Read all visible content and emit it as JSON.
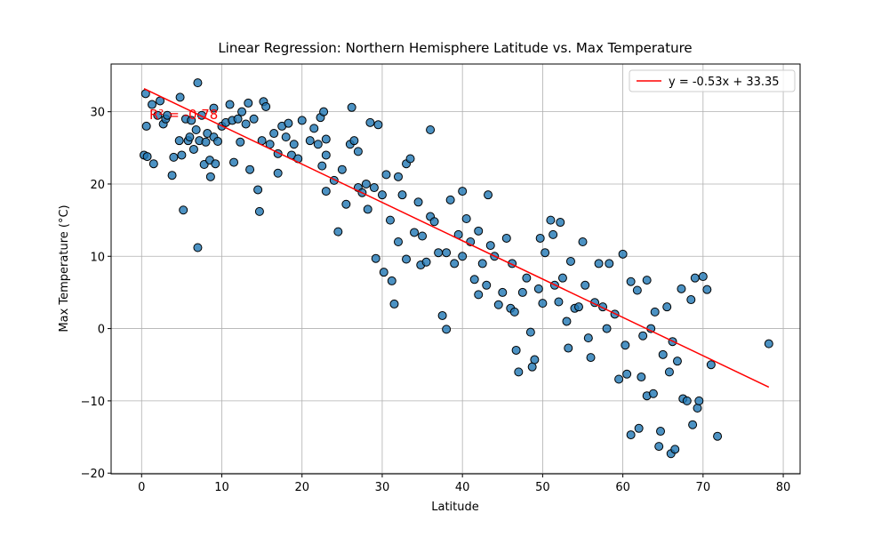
{
  "chart_data": {
    "type": "scatter",
    "title": "Linear Regression: Northern Hemisphere Latitude vs. Max Temperature",
    "xlabel": "Latitude",
    "ylabel": "Max Temperature (°C)",
    "xlim": [
      -3.8,
      82.1
    ],
    "ylim": [
      -20.1,
      36.6
    ],
    "xticks": [
      0,
      10,
      20,
      30,
      40,
      50,
      60,
      70,
      80
    ],
    "yticks": [
      {
        "value": -20,
        "label": "−20"
      },
      {
        "value": -10,
        "label": "−10"
      },
      0,
      10,
      20,
      30
    ],
    "grid": true,
    "legend": "upper right",
    "annotation": {
      "text": "R² = -0.78",
      "color": "red"
    },
    "series": [
      {
        "type": "scatter",
        "color": "#1f77b4",
        "x": [
          0.3,
          0.5,
          0.6,
          0.7,
          1.3,
          1.5,
          2,
          2.3,
          2.7,
          3,
          3.2,
          3.8,
          4,
          4.7,
          4.8,
          5,
          5.2,
          5.5,
          5.8,
          6,
          6.2,
          6.5,
          6.8,
          7,
          7,
          7.2,
          7.5,
          7.8,
          8,
          8.2,
          8.5,
          8.6,
          9,
          9,
          9.2,
          9.5,
          10,
          10.5,
          11,
          11.3,
          11.5,
          12,
          12.3,
          12.5,
          13,
          13.3,
          13.5,
          14,
          14.5,
          14.7,
          15,
          15.2,
          15.5,
          16,
          16.5,
          17,
          17,
          17.5,
          18,
          18.3,
          18.7,
          19,
          19.5,
          20,
          21,
          21.5,
          22,
          22.3,
          22.5,
          22.7,
          23,
          23,
          23,
          24,
          24.5,
          25,
          25.5,
          26,
          26.2,
          26.5,
          27,
          27,
          27.5,
          28,
          28.2,
          28.5,
          29,
          29.2,
          29.5,
          30,
          30.2,
          30.5,
          31,
          31.2,
          31.5,
          32,
          32,
          32.5,
          33,
          33,
          33.5,
          34,
          34.5,
          34.8,
          35,
          35.5,
          36,
          36,
          36.5,
          37,
          37.5,
          38,
          38,
          38.5,
          39,
          39.5,
          40,
          40,
          40.5,
          41,
          41.5,
          42,
          42,
          42.5,
          43,
          43.2,
          43.5,
          44,
          44.5,
          45,
          45.5,
          46,
          46.2,
          46.5,
          46.7,
          47,
          47.5,
          48,
          48.5,
          48.7,
          49,
          49.5,
          49.7,
          50,
          50.3,
          51,
          51.3,
          51.5,
          52,
          52.2,
          52.5,
          53,
          53.2,
          53.5,
          54,
          54.5,
          55,
          55.3,
          55.7,
          56,
          56.5,
          57,
          57.5,
          58,
          58.3,
          59,
          59.5,
          60,
          60.3,
          60.5,
          61,
          61,
          61.8,
          62,
          62.3,
          62.5,
          63,
          63,
          63.5,
          63.8,
          64,
          64.5,
          64.7,
          65,
          65.5,
          65.8,
          66,
          66.2,
          66.5,
          66.8,
          67.3,
          67.5,
          68,
          68.5,
          68.7,
          69,
          69.3,
          69.5,
          70,
          70.5,
          71,
          71.8,
          78.2
        ],
        "values": [
          24,
          32.5,
          28,
          23.8,
          31,
          22.8,
          29.5,
          31.5,
          28.3,
          29,
          29.5,
          21.2,
          23.7,
          26,
          32,
          24,
          16.4,
          29,
          26,
          26.5,
          28.8,
          24.8,
          27.5,
          34,
          11.2,
          26,
          29.5,
          22.7,
          25.8,
          27,
          23.3,
          21,
          26.5,
          30.5,
          22.8,
          25.9,
          28,
          28.5,
          31,
          28.8,
          23,
          29,
          25.8,
          30,
          28.3,
          31.2,
          22,
          29,
          19.2,
          16.2,
          26,
          31.4,
          30.7,
          25.5,
          27,
          21.5,
          24.2,
          28,
          26.5,
          28.4,
          24,
          25.5,
          23.5,
          28.8,
          26,
          27.7,
          25.5,
          29.2,
          22.5,
          30,
          19,
          26.2,
          24,
          20.5,
          13.4,
          22,
          17.2,
          25.5,
          30.6,
          26,
          19.5,
          24.5,
          18.8,
          20,
          16.5,
          28.5,
          19.5,
          9.7,
          28.2,
          18.5,
          7.8,
          21.3,
          15,
          6.6,
          3.4,
          12,
          21,
          18.5,
          22.8,
          9.6,
          23.5,
          13.3,
          17.5,
          8.8,
          12.8,
          9.2,
          27.5,
          15.5,
          14.8,
          10.5,
          1.8,
          -0.1,
          10.5,
          17.8,
          9,
          13,
          19,
          10,
          15.2,
          12,
          6.8,
          4.7,
          13.5,
          9,
          6,
          18.5,
          11.5,
          10,
          3.3,
          5,
          12.5,
          2.8,
          9,
          2.3,
          -3,
          -6,
          5,
          7,
          -0.5,
          -5.3,
          -4.3,
          5.5,
          12.5,
          3.5,
          10.5,
          15,
          13,
          6,
          3.7,
          14.7,
          7,
          1,
          -2.7,
          9.3,
          2.8,
          3,
          12,
          6,
          -1.3,
          -4,
          3.6,
          9,
          3,
          0,
          9,
          2,
          -7,
          10.3,
          -2.3,
          -6.3,
          -14.7,
          6.5,
          5.3,
          -13.8,
          -6.7,
          -1,
          6.7,
          -9.3,
          0,
          -9,
          2.3,
          -16.3,
          -14.2,
          -3.6,
          3,
          -6,
          -17.3,
          -1.8,
          -16.7,
          -4.5,
          5.5,
          -9.7,
          -10,
          4,
          -13.3,
          7,
          -11,
          -10,
          7.2,
          5.4,
          -5,
          -14.9,
          -2.1
        ]
      },
      {
        "type": "line",
        "name": "y = -0.53x + 33.35",
        "color": "red",
        "x": [
          0.3,
          78.2
        ],
        "values": [
          33.19,
          -8.1
        ]
      }
    ]
  }
}
